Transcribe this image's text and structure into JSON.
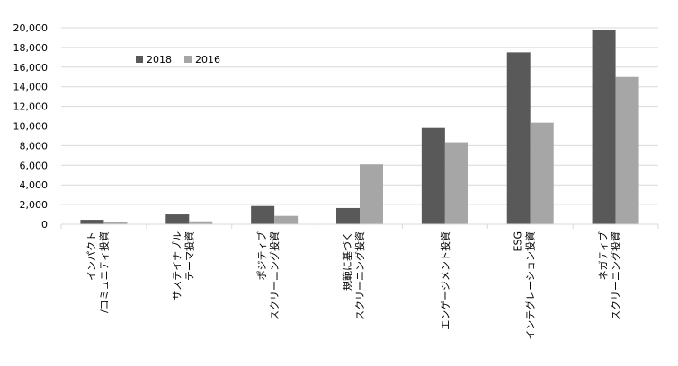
{
  "chart_data": {
    "type": "bar",
    "categories": [
      [
        "インパクト",
        "/コミュニティ投資"
      ],
      [
        "サステイナブル",
        "テーマ投資"
      ],
      [
        "ポジティブ",
        "スクリーニング投資"
      ],
      [
        "規範に基づく",
        "スクリーニング投資"
      ],
      [
        "エンゲージメント投資"
      ],
      [
        "ESG",
        "インテグレーション投資"
      ],
      [
        "ネガティブ",
        "スクリーニング投資"
      ]
    ],
    "series": [
      {
        "name": "2018",
        "values": [
          450,
          1000,
          1850,
          1650,
          9800,
          17500,
          19750
        ]
      },
      {
        "name": "2016",
        "values": [
          250,
          300,
          850,
          6100,
          8350,
          10350,
          15000
        ]
      }
    ],
    "ylim": [
      0,
      20000
    ],
    "yticks": [
      "0",
      "2,000",
      "4,000",
      "6,000",
      "8,000",
      "10,000",
      "12,000",
      "14,000",
      "16,000",
      "18,000",
      "20,000"
    ],
    "grid": true,
    "legend_position": "top-left",
    "colors": {
      "2018": "#595959",
      "2016": "#a6a6a6",
      "grid": "#d9d9d9",
      "axis": "#d9d9d9"
    },
    "title": "",
    "xlabel": "",
    "ylabel": ""
  }
}
